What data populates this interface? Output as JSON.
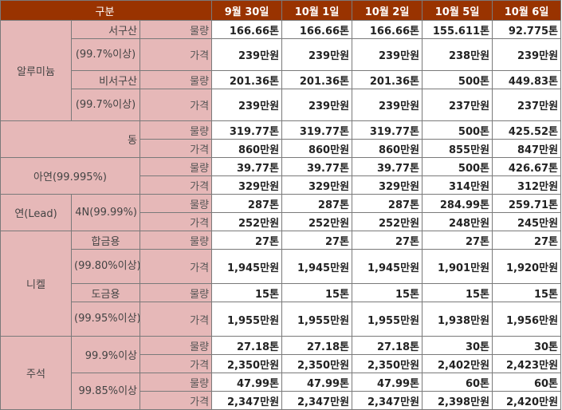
{
  "header": {
    "category": "구분",
    "dates": [
      "9월 30일",
      "10월 1일",
      "10월 2일",
      "10월 5일",
      "10월 6일"
    ]
  },
  "labels": {
    "qty": "물량",
    "price": "가격"
  },
  "aluminum": {
    "name": "알루미늄",
    "western": {
      "name": "서구산",
      "purity": "(99.7%이상)",
      "qty": [
        "166.66톤",
        "166.66톤",
        "166.66톤",
        "155.611톤",
        "92.775톤"
      ],
      "price": [
        "239만원",
        "239만원",
        "239만원",
        "238만원",
        "239만원"
      ]
    },
    "nonwestern": {
      "name": "비서구산",
      "purity": "(99.7%이상)",
      "qty": [
        "201.36톤",
        "201.36톤",
        "201.36톤",
        "500톤",
        "449.83톤"
      ],
      "price": [
        "239만원",
        "239만원",
        "239만원",
        "237만원",
        "237만원"
      ]
    }
  },
  "copper": {
    "name": "동",
    "qty": [
      "319.77톤",
      "319.77톤",
      "319.77톤",
      "500톤",
      "425.52톤"
    ],
    "price": [
      "860만원",
      "860만원",
      "860만원",
      "855만원",
      "847만원"
    ]
  },
  "zinc": {
    "name": "아연(99.995%)",
    "qty": [
      "39.77톤",
      "39.77톤",
      "39.77톤",
      "500톤",
      "426.67톤"
    ],
    "price": [
      "329만원",
      "329만원",
      "329만원",
      "314만원",
      "312만원"
    ]
  },
  "lead": {
    "name": "연(Lead)",
    "grade": "4N(99.99%)",
    "qty": [
      "287톤",
      "287톤",
      "287톤",
      "284.99톤",
      "259.71톤"
    ],
    "price": [
      "252만원",
      "252만원",
      "252만원",
      "248만원",
      "245만원"
    ]
  },
  "nickel": {
    "name": "니켈",
    "alloy": {
      "name": "합금용",
      "purity": "(99.80%이상)",
      "qty": [
        "27톤",
        "27톤",
        "27톤",
        "27톤",
        "27톤"
      ],
      "price": [
        "1,945만원",
        "1,945만원",
        "1,945만원",
        "1,901만원",
        "1,920만원"
      ]
    },
    "plating": {
      "name": "도금용",
      "purity": "(99.95%이상)",
      "qty": [
        "15톤",
        "15톤",
        "15톤",
        "15톤",
        "15톤"
      ],
      "price": [
        "1,955만원",
        "1,955만원",
        "1,955만원",
        "1,938만원",
        "1,956만원"
      ]
    }
  },
  "tin": {
    "name": "주석",
    "g999": {
      "name": "99.9%이상",
      "qty": [
        "27.18톤",
        "27.18톤",
        "27.18톤",
        "30톤",
        "30톤"
      ],
      "price": [
        "2,350만원",
        "2,350만원",
        "2,350만원",
        "2,402만원",
        "2,423만원"
      ]
    },
    "g9985": {
      "name": "99.85%이상",
      "qty": [
        "47.99톤",
        "47.99톤",
        "47.99톤",
        "60톤",
        "60톤"
      ],
      "price": [
        "2,347만원",
        "2,347만원",
        "2,347만원",
        "2,398만원",
        "2,420만원"
      ]
    }
  }
}
